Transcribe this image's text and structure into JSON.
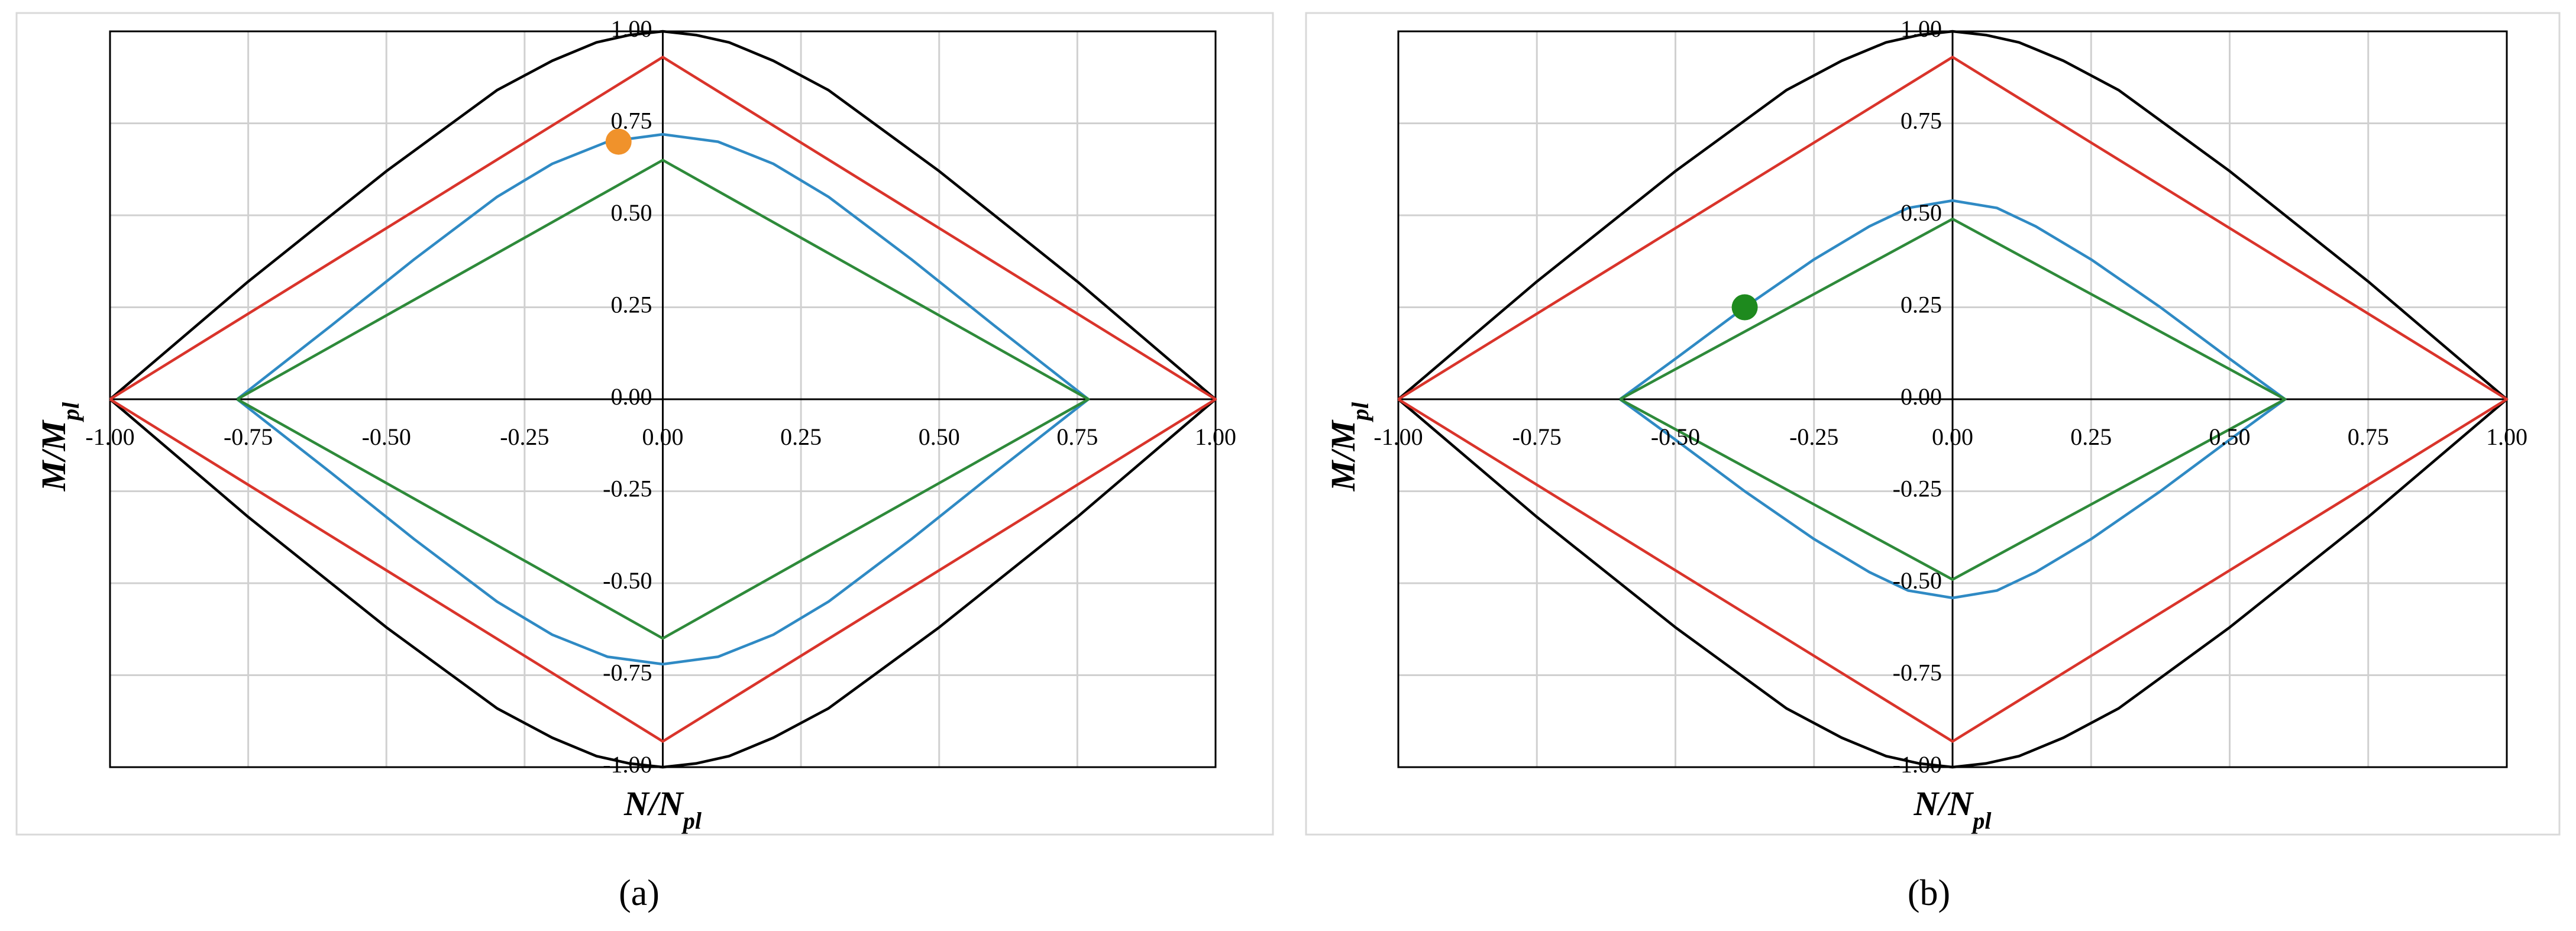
{
  "chart_data": [
    {
      "type": "line",
      "caption": "(a)",
      "xlabel": {
        "text": "N/N",
        "sub": "pl"
      },
      "ylabel": {
        "text": "M/M",
        "sub": "pl"
      },
      "xlim": [
        -1,
        1
      ],
      "ylim": [
        -1,
        1
      ],
      "grid": true,
      "xticks": [
        {
          "value": -1,
          "label": "-1.00"
        },
        {
          "value": -0.75,
          "label": "-0.75"
        },
        {
          "value": -0.5,
          "label": "-0.50"
        },
        {
          "value": -0.25,
          "label": "-0.25"
        },
        {
          "value": 0,
          "label": "0.00"
        },
        {
          "value": 0.25,
          "label": "0.25"
        },
        {
          "value": 0.5,
          "label": "0.50"
        },
        {
          "value": 0.75,
          "label": "0.75"
        },
        {
          "value": 1,
          "label": "1.00"
        }
      ],
      "yticks": [
        {
          "value": -1,
          "label": "-1.00"
        },
        {
          "value": -0.75,
          "label": "-0.75"
        },
        {
          "value": -0.5,
          "label": "-0.50"
        },
        {
          "value": -0.25,
          "label": "-0.25"
        },
        {
          "value": 0,
          "label": "0.00"
        },
        {
          "value": 0.25,
          "label": "0.25"
        },
        {
          "value": 0.5,
          "label": "0.50"
        },
        {
          "value": 0.75,
          "label": "0.75"
        },
        {
          "value": 1,
          "label": "1.00"
        }
      ],
      "series": [
        {
          "mode": "line",
          "color": "#000000",
          "x": [
            -1,
            -0.75,
            -0.5,
            -0.3,
            -0.2,
            -0.12,
            -0.06,
            0,
            0.06,
            0.12,
            0.2,
            0.3,
            0.5,
            0.75,
            1,
            0.75,
            0.5,
            0.3,
            0.2,
            0.12,
            0.06,
            0,
            -0.06,
            -0.12,
            -0.2,
            -0.3,
            -0.5,
            -0.75,
            -1
          ],
          "values": [
            0,
            0.32,
            0.62,
            0.84,
            0.92,
            0.97,
            0.99,
            1,
            0.99,
            0.97,
            0.92,
            0.84,
            0.62,
            0.32,
            0,
            -0.32,
            -0.62,
            -0.84,
            -0.92,
            -0.97,
            -0.99,
            -1,
            -0.99,
            -0.97,
            -0.92,
            -0.84,
            -0.62,
            -0.32,
            0
          ]
        },
        {
          "mode": "line",
          "color": "#d9342b",
          "x": [
            -1,
            0,
            1,
            0,
            -1
          ],
          "values": [
            0,
            0.93,
            0,
            -0.93,
            0
          ]
        },
        {
          "mode": "line",
          "color": "#2f8ac4",
          "x": [
            -0.77,
            -0.6,
            -0.45,
            -0.3,
            -0.2,
            -0.1,
            0,
            0.1,
            0.2,
            0.3,
            0.45,
            0.6,
            0.77,
            0.6,
            0.45,
            0.3,
            0.2,
            0.1,
            0,
            -0.1,
            -0.2,
            -0.3,
            -0.45,
            -0.6,
            -0.77
          ],
          "values": [
            0,
            0.2,
            0.38,
            0.55,
            0.64,
            0.7,
            0.72,
            0.7,
            0.64,
            0.55,
            0.38,
            0.2,
            0,
            -0.2,
            -0.38,
            -0.55,
            -0.64,
            -0.7,
            -0.72,
            -0.7,
            -0.64,
            -0.55,
            -0.38,
            -0.2,
            0
          ]
        },
        {
          "mode": "line",
          "color": "#2e8a3a",
          "x": [
            -0.77,
            0,
            0.77,
            0,
            -0.77
          ],
          "values": [
            0,
            0.65,
            0,
            -0.65,
            0
          ]
        },
        {
          "mode": "marker",
          "color": "#f0922b",
          "x": [
            -0.08
          ],
          "values": [
            0.7
          ]
        }
      ]
    },
    {
      "type": "line",
      "caption": "(b)",
      "xlabel": {
        "text": "N/N",
        "sub": "pl"
      },
      "ylabel": {
        "text": "M/M",
        "sub": "pl"
      },
      "xlim": [
        -1,
        1
      ],
      "ylim": [
        -1,
        1
      ],
      "grid": true,
      "xticks": [
        {
          "value": -1,
          "label": "-1.00"
        },
        {
          "value": -0.75,
          "label": "-0.75"
        },
        {
          "value": -0.5,
          "label": "-0.50"
        },
        {
          "value": -0.25,
          "label": "-0.25"
        },
        {
          "value": 0,
          "label": "0.00"
        },
        {
          "value": 0.25,
          "label": "0.25"
        },
        {
          "value": 0.5,
          "label": "0.50"
        },
        {
          "value": 0.75,
          "label": "0.75"
        },
        {
          "value": 1,
          "label": "1.00"
        }
      ],
      "yticks": [
        {
          "value": -1,
          "label": "-1.00"
        },
        {
          "value": -0.75,
          "label": "-0.75"
        },
        {
          "value": -0.5,
          "label": "-0.50"
        },
        {
          "value": -0.25,
          "label": "-0.25"
        },
        {
          "value": 0,
          "label": "0.00"
        },
        {
          "value": 0.25,
          "label": "0.25"
        },
        {
          "value": 0.5,
          "label": "0.50"
        },
        {
          "value": 0.75,
          "label": "0.75"
        },
        {
          "value": 1,
          "label": "1.00"
        }
      ],
      "series": [
        {
          "mode": "line",
          "color": "#000000",
          "x": [
            -1,
            -0.75,
            -0.5,
            -0.3,
            -0.2,
            -0.12,
            -0.06,
            0,
            0.06,
            0.12,
            0.2,
            0.3,
            0.5,
            0.75,
            1,
            0.75,
            0.5,
            0.3,
            0.2,
            0.12,
            0.06,
            0,
            -0.06,
            -0.12,
            -0.2,
            -0.3,
            -0.5,
            -0.75,
            -1
          ],
          "values": [
            0,
            0.32,
            0.62,
            0.84,
            0.92,
            0.97,
            0.99,
            1,
            0.99,
            0.97,
            0.92,
            0.84,
            0.62,
            0.32,
            0,
            -0.32,
            -0.62,
            -0.84,
            -0.92,
            -0.97,
            -0.99,
            -1,
            -0.99,
            -0.97,
            -0.92,
            -0.84,
            -0.62,
            -0.32,
            0
          ]
        },
        {
          "mode": "line",
          "color": "#d9342b",
          "x": [
            -1,
            0,
            1,
            0,
            -1
          ],
          "values": [
            0,
            0.93,
            0,
            -0.93,
            0
          ]
        },
        {
          "mode": "line",
          "color": "#2f8ac4",
          "x": [
            -0.6,
            -0.5,
            -0.375,
            -0.25,
            -0.15,
            -0.08,
            0,
            0.08,
            0.15,
            0.25,
            0.375,
            0.5,
            0.6,
            0.5,
            0.375,
            0.25,
            0.15,
            0.08,
            0,
            -0.08,
            -0.15,
            -0.25,
            -0.375,
            -0.5,
            -0.6
          ],
          "values": [
            0,
            0.11,
            0.25,
            0.38,
            0.47,
            0.52,
            0.54,
            0.52,
            0.47,
            0.38,
            0.25,
            0.11,
            0,
            -0.11,
            -0.25,
            -0.38,
            -0.47,
            -0.52,
            -0.54,
            -0.52,
            -0.47,
            -0.38,
            -0.25,
            -0.11,
            0
          ]
        },
        {
          "mode": "line",
          "color": "#2e8a3a",
          "x": [
            -0.6,
            0,
            0.6,
            0,
            -0.6
          ],
          "values": [
            0,
            0.49,
            0,
            -0.49,
            0
          ]
        },
        {
          "mode": "marker",
          "color": "#1e8a1e",
          "x": [
            -0.375
          ],
          "values": [
            0.25
          ]
        }
      ]
    }
  ]
}
